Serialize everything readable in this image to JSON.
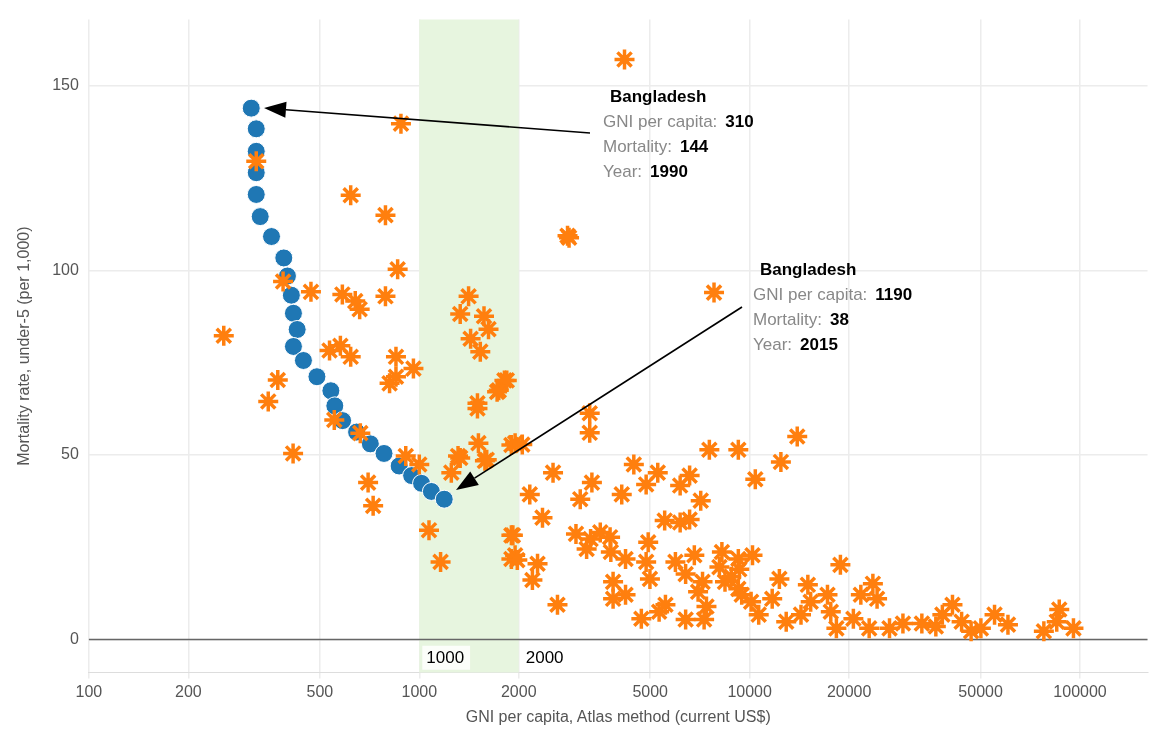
{
  "chart_data": {
    "type": "scatter",
    "xlabel": "GNI per capita, Atlas method (current US$)",
    "ylabel": "Mortality rate, under-5 (per 1,000)",
    "log": "x",
    "xlim": [
      100,
      160000
    ],
    "xticks": [
      100,
      200,
      500,
      1000,
      2000,
      5000,
      10000,
      20000,
      50000,
      100000
    ],
    "ylim": [
      -9,
      168
    ],
    "yticks": [
      0,
      50,
      100,
      150
    ],
    "grid": true,
    "legend": false,
    "bands": [
      {
        "axis": "x",
        "from": 1000,
        "to": 2000,
        "color": "#e7f5df"
      }
    ],
    "ref_lines": [
      {
        "axis": "y",
        "value": 0,
        "color": "#666666"
      }
    ],
    "annotations": [
      "Bangladesh",
      "GNI per capita:",
      "310",
      "Mortality:",
      "144",
      "Year:",
      "1990",
      "Bangladesh",
      "GNI per capita:",
      "1190",
      "Mortality:",
      "38",
      "Year:",
      "2015",
      {
        "text": "1000",
        "x": 1000,
        "y": -5
      },
      {
        "text": "2000",
        "x": 2000,
        "y": -5
      }
    ],
    "series": [
      {
        "color": "#ff7f0e",
        "marker": "cross",
        "x": [
          4180,
          880,
          321,
          620,
          790,
          2810,
          860,
          7800,
          387,
          470,
          585,
          660,
          640,
          790,
          256,
          1410,
          1330,
          1570,
          1620,
          1430,
          1530,
          535,
          577,
          620,
          850,
          373,
          349,
          415,
          960,
          813,
          850,
          700,
          725,
          553,
          663,
          910,
          1000,
          1070,
          1160,
          1250,
          1330,
          1510,
          1580,
          1500,
          1500,
          1740,
          1810,
          1900,
          1900,
          1900,
          1840,
          1720,
          1310,
          1600,
          1950,
          2050,
          3280,
          3280,
          1920,
          1950,
          1980,
          2280,
          2200,
          2620,
          2160,
          2360,
          2540,
          3070,
          3330,
          2980,
          3300,
          3530,
          3780,
          3210,
          4460,
          4100,
          4860,
          5270,
          6580,
          6160,
          7110,
          5530,
          6160,
          6580,
          7550,
          9240,
          4930,
          3800,
          4210,
          3860,
          3860,
          4210,
          4860,
          4990,
          4700,
          5320,
          5560,
          5960,
          6400,
          6800,
          7200,
          6400,
          7280,
          8240,
          9240,
          8420,
          9460,
          10400,
          12430,
          13930,
          18820,
          9300,
          9240,
          10650,
          11700,
          12300,
          12900,
          14300,
          15000,
          15300,
          17200,
          17600,
          18300,
          20600,
          21700,
          23600,
          24300,
          23000,
          26500,
          29100,
          33200,
          36600,
          41100,
          38300,
          43800,
          46800,
          50100,
          55100,
          60500,
          77700,
          86500,
          85000,
          95500,
          10200,
          8800,
          10100,
          8100,
          7400,
          6980,
          2840
        ],
        "values": [
          157.2,
          139.8,
          129.6,
          120.4,
          115.0,
          109.4,
          100.3,
          94.0,
          97.0,
          94.2,
          93.5,
          89.5,
          91.7,
          93.0,
          82.3,
          93.0,
          88.2,
          87.6,
          84.1,
          81.5,
          78.0,
          78.3,
          79.6,
          76.6,
          76.6,
          70.3,
          64.5,
          50.4,
          73.4,
          69.4,
          71.2,
          42.5,
          36.2,
          59.5,
          55.9,
          49.7,
          47.4,
          29.6,
          21.0,
          45.2,
          49.2,
          53.2,
          48.4,
          62.6,
          64.0,
          67.5,
          70.2,
          52.7,
          28.2,
          21.8,
          70.2,
          67.1,
          49.7,
          48.7,
          53.2,
          52.8,
          61.3,
          56.0,
          28.2,
          22.8,
          21.5,
          20.5,
          16.1,
          9.4,
          39.3,
          33.0,
          45.2,
          38.0,
          42.5,
          28.6,
          27.2,
          29.0,
          27.7,
          24.5,
          47.4,
          39.3,
          42.0,
          45.2,
          44.4,
          41.7,
          37.6,
          32.2,
          31.7,
          32.5,
          51.4,
          51.4,
          26.3,
          23.7,
          21.8,
          15.6,
          11.0,
          12.1,
          21.0,
          16.4,
          5.6,
          7.5,
          9.4,
          21.0,
          17.7,
          22.8,
          15.6,
          5.4,
          5.4,
          23.7,
          21.8,
          15.6,
          12.1,
          43.4,
          48.1,
          55.0,
          20.2,
          19.0,
          13.7,
          6.7,
          11.0,
          16.4,
          4.8,
          6.7,
          14.8,
          10.2,
          12.1,
          7.5,
          3.0,
          5.6,
          12.1,
          15.1,
          11.0,
          3.0,
          3.0,
          4.3,
          4.3,
          3.5,
          9.4,
          6.7,
          4.8,
          2.2,
          3.0,
          6.7,
          4.0,
          2.2,
          8.1,
          4.8,
          3.0,
          22.8,
          17.0,
          10.2,
          19.6,
          8.9,
          12.9,
          108.9
        ]
      },
      {
        "color": "#1f77b4",
        "marker": "circle",
        "x": [
          310,
          321,
          321,
          321,
          321,
          330,
          357,
          389,
          399,
          410,
          416,
          427,
          416,
          446,
          490,
          540,
          555,
          586,
          646,
          711,
          782,
          869,
          948,
          1016,
          1088,
          1190
        ],
        "values": [
          144,
          138.4,
          132.3,
          126.5,
          120.6,
          114.6,
          109.2,
          103.4,
          98.5,
          93.3,
          88.4,
          84.0,
          79.4,
          75.6,
          71.2,
          67.4,
          63.3,
          59.3,
          56.2,
          53.0,
          50.4,
          47.0,
          44.4,
          42.3,
          40.1,
          38
        ]
      }
    ]
  }
}
